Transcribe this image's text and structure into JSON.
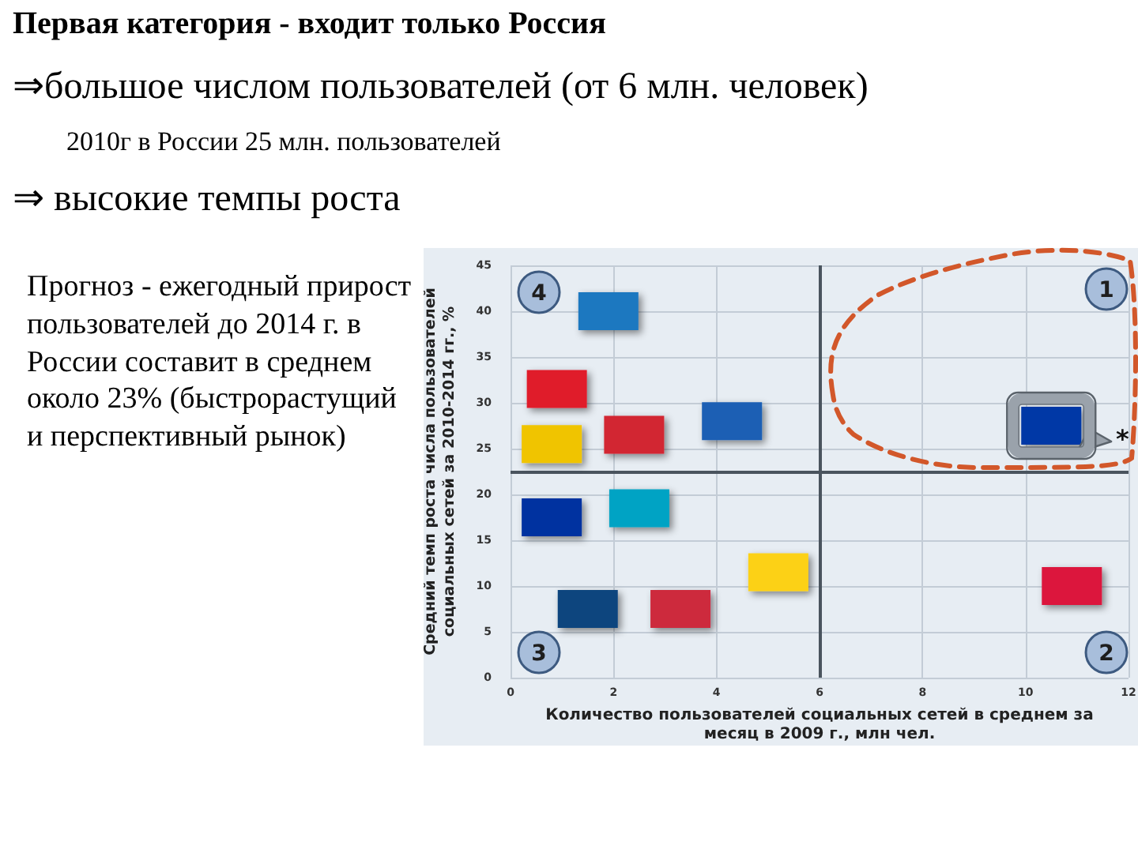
{
  "chart_data": {
    "type": "scatter",
    "title": "Первая категория - входит только Россия",
    "annotations": [
      "⇒большое числом пользователей (от 6 млн. человек)",
      "2010г в России 25 млн. пользователей",
      "⇒ высокие темпы роста",
      "Прогноз - ежегодный прирост пользователей до 2014 г. в России составит в среднем около 23% (быстрорастущий и перспективный рынок)",
      "4",
      "1",
      "3",
      "2",
      "*"
    ],
    "xlabel": "Количество пользователей социальных сетей в среднем за месяц в 2009 г., млн чел.",
    "ylabel": "Средний темп роста числа пользователей социальных сетей за 2010-2014 гг., %",
    "x": [
      1.9,
      0.9,
      0.8,
      2.4,
      4.3,
      0.8,
      2.5,
      1.5,
      3.3,
      5.2,
      10.9,
      10.5
    ],
    "values": [
      40,
      31.5,
      25.5,
      26.5,
      28,
      17.5,
      18.5,
      7.5,
      7.5,
      11.5,
      10,
      27.5
    ],
    "colors": [
      "#1f78c0",
      "#e01a2a",
      "#f0c400",
      "#d22730",
      "#1a5fb4",
      "#0033a0",
      "#00a3c4",
      "#11457e",
      "#cd2a3e",
      "#fcd116",
      "#dc143c",
      "#0039a6"
    ],
    "marker": "square",
    "xlim": [
      0,
      12
    ],
    "xticks": [
      0,
      2,
      4,
      6,
      8,
      10,
      12
    ],
    "ylim": [
      0,
      45
    ],
    "yticks": [
      0,
      5,
      10,
      15,
      20,
      25,
      30,
      35,
      40,
      45
    ],
    "grid": true,
    "ref_lines": [
      {
        "axis": "x",
        "value": 6,
        "color": "#4a545e"
      },
      {
        "axis": "y",
        "value": 22.5,
        "color": "#4a545e"
      }
    ]
  }
}
